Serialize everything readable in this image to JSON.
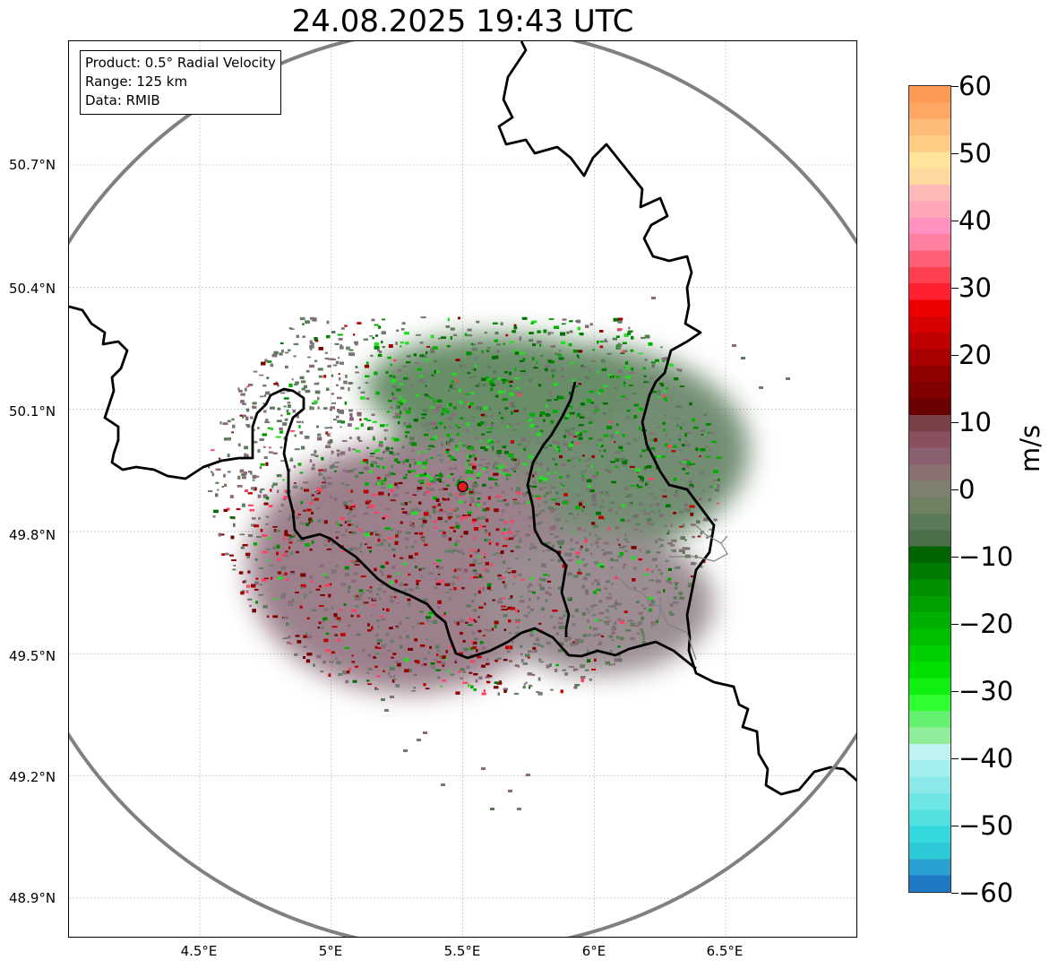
{
  "title": "24.08.2025 19:43 UTC",
  "info": {
    "product": "Product: 0.5° Radial Velocity",
    "range": "Range: 125 km",
    "data": "Data: RMIB"
  },
  "axes": {
    "lat_labels": [
      "50.7°N",
      "50.4°N",
      "50.1°N",
      "49.8°N",
      "49.5°N",
      "49.2°N",
      "48.9°N"
    ],
    "lon_labels": [
      "4.5°E",
      "5°E",
      "5.5°E",
      "6°E",
      "6.5°E"
    ]
  },
  "radar_site": {
    "name": "radar-site",
    "lon": 5.5,
    "lat": 49.91
  },
  "colorbar": {
    "unit": "m/s",
    "min": -60,
    "max": 60,
    "tick_labels": [
      "60",
      "50",
      "40",
      "30",
      "20",
      "10",
      "0",
      "−10",
      "−20",
      "−30",
      "−40",
      "−50",
      "−60"
    ],
    "colors": [
      "#1f78c4",
      "#2aa0d0",
      "#2ec9d6",
      "#35d8dc",
      "#52e0e0",
      "#6ee6e6",
      "#8be9ea",
      "#a3eeee",
      "#bff2f2",
      "#90ee9a",
      "#64f070",
      "#30ff30",
      "#10f010",
      "#00e000",
      "#00d000",
      "#00c000",
      "#00b000",
      "#00a000",
      "#009000",
      "#007a00",
      "#006400",
      "#4a6f4a",
      "#5a7a5a",
      "#6f8160",
      "#808070",
      "#8a7070",
      "#8a6070",
      "#8a5060",
      "#7a4048",
      "#6a0000",
      "#800000",
      "#900000",
      "#a80000",
      "#c00000",
      "#d80000",
      "#ee0000",
      "#ff2030",
      "#ff4050",
      "#ff6078",
      "#ff80a0",
      "#ff90c0",
      "#ffa6b8",
      "#ffb8b8",
      "#ffd8a0",
      "#ffe39a",
      "#ffcd85",
      "#ffbb7a",
      "#ffa866",
      "#ff9a55"
    ],
    "accent_map": "#000000"
  },
  "map_colors": {
    "radar_ring": "#808080",
    "border": "#000000",
    "grid": "#b0b0b0",
    "site_fill": "#e02020"
  },
  "velocity_palette": {
    "inbound": [
      "#007000",
      "#008a00",
      "#00b000",
      "#20e020"
    ],
    "near_zero": [
      "#5a7a5a",
      "#6e7e6e",
      "#7e7076",
      "#8a6a78"
    ],
    "outbound": [
      "#7a0000",
      "#960000",
      "#c00000",
      "#ff4060"
    ]
  }
}
